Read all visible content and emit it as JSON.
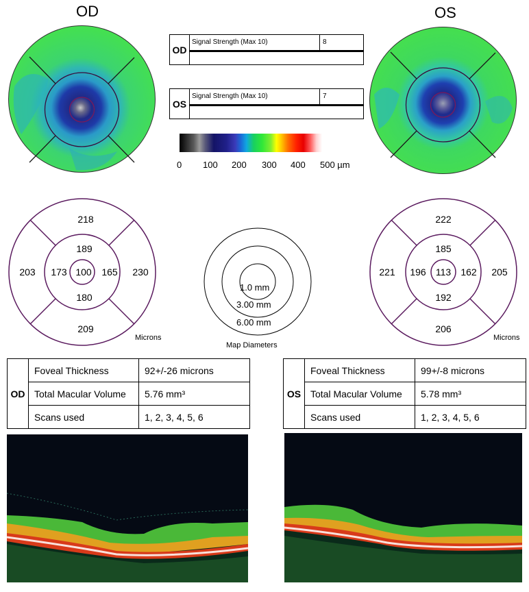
{
  "od_title": "OD",
  "os_title": "OS",
  "signal": {
    "od": {
      "eye": "OD",
      "label": "Signal Strength (Max 10)",
      "value": "8"
    },
    "os": {
      "eye": "OS",
      "label": "Signal Strength (Max 10)",
      "value": "7"
    }
  },
  "colorbar": {
    "labels": [
      "0",
      "100",
      "200",
      "300",
      "400",
      "500 µm"
    ]
  },
  "od_grid": {
    "outer_top": "218",
    "outer_left": "203",
    "outer_right": "230",
    "outer_bottom": "209",
    "inner_top": "189",
    "inner_left": "173",
    "inner_right": "165",
    "inner_bottom": "180",
    "center": "100",
    "units": "Microns"
  },
  "os_grid": {
    "outer_top": "222",
    "outer_left": "221",
    "outer_right": "205",
    "outer_bottom": "206",
    "inner_top": "185",
    "inner_left": "196",
    "inner_right": "162",
    "inner_bottom": "192",
    "center": "113",
    "units": "Microns"
  },
  "map_diameters": {
    "inner": "1.0 mm",
    "middle": "3.00 mm",
    "outer": "6.00 mm",
    "caption": "Map Diameters"
  },
  "od_summary": {
    "eye": "OD",
    "rows": [
      {
        "label": "Foveal Thickness",
        "value": "92+/-26 microns"
      },
      {
        "label": "Total Macular Volume",
        "value": "5.76 mm³"
      },
      {
        "label": "Scans used",
        "value": "1, 2, 3, 4, 5, 6"
      }
    ]
  },
  "os_summary": {
    "eye": "OS",
    "rows": [
      {
        "label": "Foveal Thickness",
        "value": "99+/-8 microns"
      },
      {
        "label": "Total Macular Volume",
        "value": "5.78 mm³"
      },
      {
        "label": "Scans used",
        "value": "1, 2, 3, 4, 5, 6"
      }
    ]
  },
  "colors": {
    "grid_line": "#5a1a5e",
    "map_green": "#3ee04a",
    "map_cyan": "#2aa8c8",
    "map_blue": "#1a2a8a"
  }
}
